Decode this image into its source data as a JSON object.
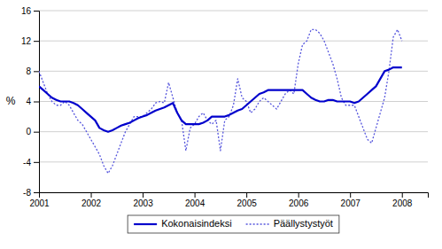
{
  "chart_data": {
    "type": "line",
    "y_label": "%",
    "x": [
      2001,
      2001.0833333333333,
      2001.1666666666667,
      2001.25,
      2001.3333333333333,
      2001.4166666666667,
      2001.5,
      2001.5833333333333,
      2001.6666666666667,
      2001.75,
      2001.8333333333333,
      2001.9166666666667,
      2002,
      2002.0833333333333,
      2002.1666666666667,
      2002.25,
      2002.3333333333333,
      2002.4166666666667,
      2002.5,
      2002.5833333333333,
      2002.6666666666667,
      2002.75,
      2002.8333333333333,
      2002.9166666666667,
      2003,
      2003.0833333333333,
      2003.1666666666667,
      2003.25,
      2003.3333333333333,
      2003.4166666666667,
      2003.5,
      2003.5833333333333,
      2003.6666666666667,
      2003.75,
      2003.8333333333333,
      2003.9166666666667,
      2004,
      2004.0833333333333,
      2004.1666666666667,
      2004.25,
      2004.3333333333333,
      2004.4166666666667,
      2004.5,
      2004.5833333333333,
      2004.6666666666667,
      2004.75,
      2004.8333333333333,
      2004.9166666666667,
      2005,
      2005.0833333333333,
      2005.1666666666667,
      2005.25,
      2005.3333333333333,
      2005.4166666666667,
      2005.5,
      2005.5833333333333,
      2005.6666666666667,
      2005.75,
      2005.8333333333333,
      2005.9166666666667,
      2006,
      2006.0833333333333,
      2006.1666666666667,
      2006.25,
      2006.3333333333333,
      2006.4166666666667,
      2006.5,
      2006.5833333333333,
      2006.6666666666667,
      2006.75,
      2006.8333333333333,
      2006.9166666666667,
      2007,
      2007.0833333333333,
      2007.1666666666667,
      2007.25,
      2007.3333333333333,
      2007.4166666666667,
      2007.5,
      2007.5833333333333,
      2007.6666666666667,
      2007.75,
      2007.8333333333333,
      2007.9166666666667,
      2008
    ],
    "series": [
      {
        "name": "Kokonaisindeksi",
        "color": "#0000cc",
        "line_style": "solid",
        "values": [
          6.0,
          5.5,
          5.0,
          4.5,
          4.2,
          4.0,
          4.0,
          4.0,
          3.8,
          3.5,
          3.0,
          2.5,
          2.0,
          1.5,
          0.5,
          0.2,
          0.0,
          0.2,
          0.5,
          0.8,
          1.0,
          1.2,
          1.5,
          1.8,
          2.0,
          2.2,
          2.5,
          2.8,
          3.0,
          3.2,
          3.5,
          3.8,
          2.5,
          1.5,
          1.0,
          1.0,
          1.0,
          1.0,
          1.2,
          1.5,
          2.0,
          2.0,
          2.0,
          2.0,
          2.2,
          2.5,
          2.8,
          3.0,
          3.5,
          4.0,
          4.5,
          5.0,
          5.2,
          5.5,
          5.5,
          5.5,
          5.5,
          5.5,
          5.5,
          5.5,
          5.5,
          5.5,
          5.0,
          4.5,
          4.2,
          4.0,
          4.0,
          4.2,
          4.2,
          4.0,
          4.0,
          4.0,
          4.0,
          3.8,
          4.0,
          4.5,
          5.0,
          5.5,
          6.0,
          7.0,
          8.0,
          8.2,
          8.5,
          8.5,
          8.5
        ]
      },
      {
        "name": "Päällystystyöt",
        "color": "#5555dd",
        "line_style": "dotted",
        "values": [
          8.0,
          6.5,
          5.0,
          4.0,
          3.5,
          3.5,
          4.0,
          3.5,
          2.5,
          1.5,
          1.0,
          0.0,
          -1.0,
          -2.0,
          -3.0,
          -4.5,
          -5.5,
          -4.5,
          -3.0,
          -1.5,
          0.0,
          1.0,
          2.0,
          2.0,
          2.0,
          2.5,
          3.0,
          3.8,
          4.0,
          3.8,
          6.5,
          4.5,
          2.5,
          1.5,
          -2.5,
          0.5,
          1.0,
          2.0,
          2.5,
          1.5,
          1.0,
          1.5,
          -2.5,
          1.5,
          2.0,
          3.5,
          7.0,
          4.5,
          4.0,
          2.5,
          3.0,
          4.0,
          4.5,
          4.0,
          3.5,
          3.0,
          4.0,
          5.0,
          5.5,
          5.0,
          9.0,
          11.5,
          12.0,
          13.5,
          13.5,
          13.0,
          12.0,
          10.5,
          9.0,
          7.0,
          4.5,
          3.5,
          3.5,
          3.5,
          2.0,
          0.5,
          -1.0,
          -1.5,
          0.5,
          2.5,
          4.5,
          8.0,
          12.5,
          13.5,
          12.0
        ]
      }
    ],
    "xlim": [
      2001.0,
      2008.5
    ],
    "xticks": [
      2001,
      2002,
      2003,
      2004,
      2005,
      2006,
      2007,
      2008
    ],
    "ylim": [
      -8,
      16
    ],
    "yticks": [
      -8,
      -4,
      0,
      4,
      8,
      12,
      16
    ],
    "grid": true,
    "legend": "bottom"
  }
}
